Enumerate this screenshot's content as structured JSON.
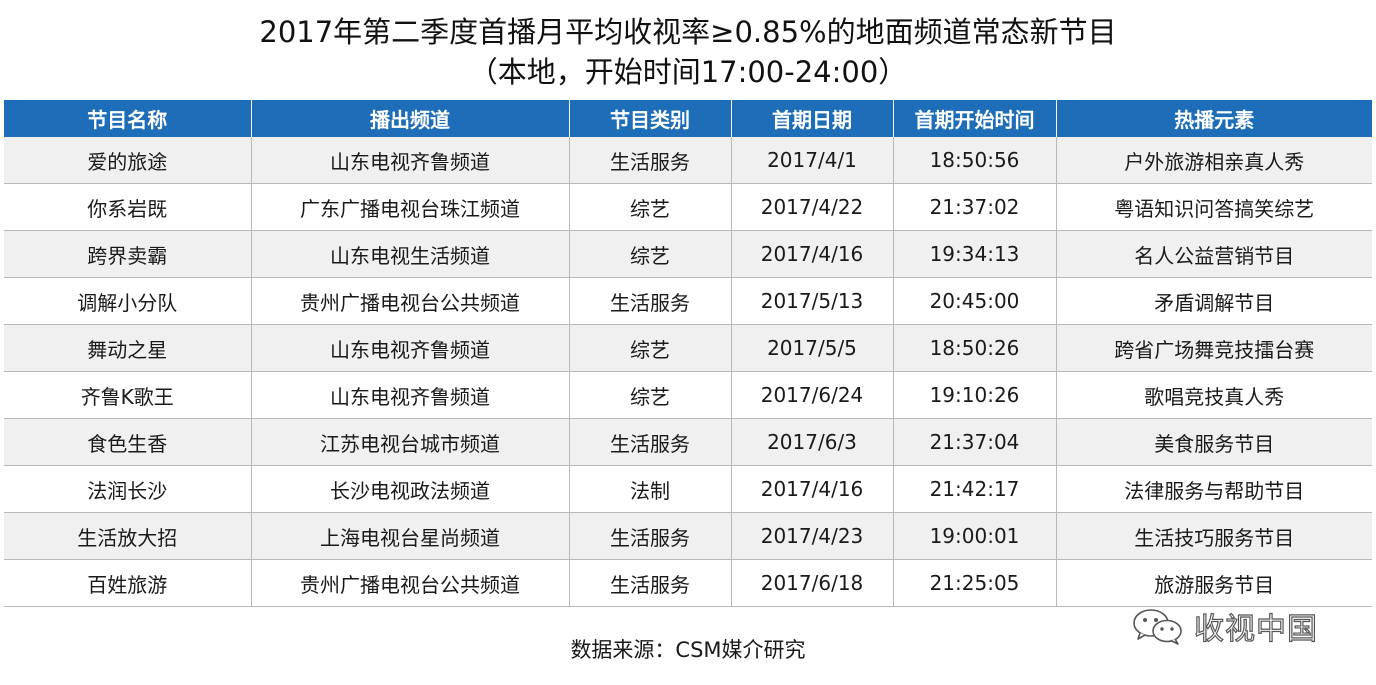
{
  "title": {
    "line1": "2017年第二季度首播月平均收视率≥0.85%的地面频道常态新节目",
    "line2": "（本地，开始时间17:00-24:00）"
  },
  "table": {
    "headers": [
      "节目名称",
      "播出频道",
      "节目类别",
      "首期日期",
      "首期开始时间",
      "热播元素"
    ],
    "rows": [
      [
        "爱的旅途",
        "山东电视齐鲁频道",
        "生活服务",
        "2017/4/1",
        "18:50:56",
        "户外旅游相亲真人秀"
      ],
      [
        "你系岩既",
        "广东广播电视台珠江频道",
        "综艺",
        "2017/4/22",
        "21:37:02",
        "粤语知识问答搞笑综艺"
      ],
      [
        "跨界卖霸",
        "山东电视生活频道",
        "综艺",
        "2017/4/16",
        "19:34:13",
        "名人公益营销节目"
      ],
      [
        "调解小分队",
        "贵州广播电视台公共频道",
        "生活服务",
        "2017/5/13",
        "20:45:00",
        "矛盾调解节目"
      ],
      [
        "舞动之星",
        "山东电视齐鲁频道",
        "综艺",
        "2017/5/5",
        "18:50:26",
        "跨省广场舞竞技擂台赛"
      ],
      [
        "齐鲁K歌王",
        "山东电视齐鲁频道",
        "综艺",
        "2017/6/24",
        "19:10:26",
        "歌唱竞技真人秀"
      ],
      [
        "食色生香",
        "江苏电视台城市频道",
        "生活服务",
        "2017/6/3",
        "21:37:04",
        "美食服务节目"
      ],
      [
        "法润长沙",
        "长沙电视政法频道",
        "法制",
        "2017/4/16",
        "21:42:17",
        "法律服务与帮助节目"
      ],
      [
        "生活放大招",
        "上海电视台星尚频道",
        "生活服务",
        "2017/4/23",
        "19:00:01",
        "生活技巧服务节目"
      ],
      [
        "百姓旅游",
        "贵州广播电视台公共频道",
        "生活服务",
        "2017/6/18",
        "21:25:05",
        "旅游服务节目"
      ]
    ]
  },
  "watermark": {
    "text": "收视中国",
    "icon": "wechat-icon"
  },
  "source": "数据来源：CSM媒介研究",
  "colors": {
    "header_bg": "#1e6db8",
    "header_text": "#ffffff",
    "row_alt": "#f0f0f0",
    "grid": "#b9b9b9"
  }
}
